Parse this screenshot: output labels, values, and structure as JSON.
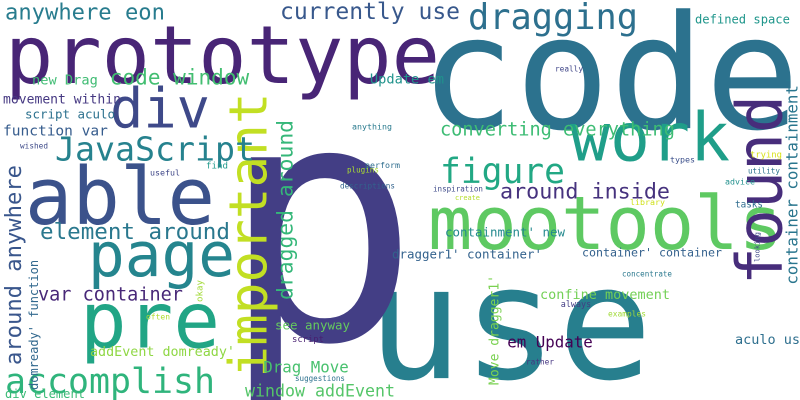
{
  "words": [
    {
      "text": "use",
      "color": "#277f8e"
    },
    {
      "text": "p",
      "color": "#433e85"
    },
    {
      "text": "code",
      "color": "#2c728e"
    },
    {
      "text": "prototype",
      "color": "#482576"
    },
    {
      "text": "mootools",
      "color": "#5ec962"
    },
    {
      "text": "pre",
      "color": "#21a585"
    },
    {
      "text": "work",
      "color": "#1f9e89"
    },
    {
      "text": "able",
      "color": "#3b528b"
    },
    {
      "text": "page",
      "color": "#25858e"
    },
    {
      "text": "div",
      "color": "#3e4989"
    },
    {
      "text": "important",
      "color": "#c2df23"
    },
    {
      "text": "figure",
      "color": "#22a884"
    },
    {
      "text": "found",
      "color": "#472d7b"
    },
    {
      "text": "accomplish",
      "color": "#2fb47c"
    },
    {
      "text": "JavaScript",
      "color": "#26828e"
    },
    {
      "text": "dragging",
      "color": "#2d708e"
    },
    {
      "text": "dragged around",
      "color": "#35b779"
    },
    {
      "text": "currently use",
      "color": "#38588c"
    },
    {
      "text": "element around",
      "color": "#2a788e"
    },
    {
      "text": "around anywhere",
      "color": "#39568c"
    },
    {
      "text": "converting everything",
      "color": "#3dbc74"
    },
    {
      "text": "around inside",
      "color": "#46327e"
    },
    {
      "text": "code window",
      "color": "#42be71"
    },
    {
      "text": "anywhere eon",
      "color": "#287c8e"
    },
    {
      "text": "window addEvent",
      "color": "#54c568"
    },
    {
      "text": "container containment'",
      "color": "#2a768e"
    },
    {
      "text": "var container",
      "color": "#482878"
    },
    {
      "text": "domready' function",
      "color": "#31688e"
    },
    {
      "text": "confine movement",
      "color": "#73d056"
    },
    {
      "text": "Move dragger1'",
      "color": "#7ad151"
    },
    {
      "text": "aculo us",
      "color": "#2e6f8e"
    },
    {
      "text": "containment' new",
      "color": "#23898e"
    },
    {
      "text": "addEvent domready'",
      "color": "#8fd744"
    },
    {
      "text": "movement within",
      "color": "#453882"
    },
    {
      "text": "function var",
      "color": "#365c8d"
    },
    {
      "text": "new Drag",
      "color": "#3fbc73"
    },
    {
      "text": "Drag Move",
      "color": "#48c16e"
    },
    {
      "text": "em Update",
      "color": "#440154"
    },
    {
      "text": "Update em",
      "color": "#20938c"
    },
    {
      "text": "script aculo",
      "color": "#2c718e"
    },
    {
      "text": "see anyway",
      "color": "#65cb5e"
    },
    {
      "text": "defined space",
      "color": "#1f968b"
    },
    {
      "text": "dragger1' container'",
      "color": "#33628d"
    },
    {
      "text": "container' container",
      "color": "#34618d"
    },
    {
      "text": "div element",
      "color": "#3aba76"
    },
    {
      "text": "script",
      "color": "#482071"
    },
    {
      "text": "trying",
      "color": "#d8e219"
    },
    {
      "text": "utility",
      "color": "#2c738e"
    },
    {
      "text": "advice",
      "color": "#21908d"
    },
    {
      "text": "tasks",
      "color": "#2f6c8e"
    },
    {
      "text": "looking",
      "color": "#3f4889"
    },
    {
      "text": "types",
      "color": "#3c508b"
    },
    {
      "text": "really",
      "color": "#404688"
    },
    {
      "text": "concentrate",
      "color": "#2a788e"
    },
    {
      "text": "examples",
      "color": "#a0da39"
    },
    {
      "text": "always",
      "color": "#433d84"
    },
    {
      "text": "suggestions",
      "color": "#2d718e"
    },
    {
      "text": "rather",
      "color": "#453581"
    },
    {
      "text": "okay",
      "color": "#a2da37"
    },
    {
      "text": "often",
      "color": "#b0dd2f"
    },
    {
      "text": "find",
      "color": "#1f998a"
    },
    {
      "text": "wished",
      "color": "#3e4a89"
    },
    {
      "text": "useful",
      "color": "#3f4788"
    },
    {
      "text": "anything",
      "color": "#297a8e"
    },
    {
      "text": "plugins",
      "color": "#aadc32"
    },
    {
      "text": "perform",
      "color": "#2e6d8e"
    },
    {
      "text": "descriptions",
      "color": "#33638d"
    },
    {
      "text": "inspiration",
      "color": "#3e4a89"
    },
    {
      "text": "create",
      "color": "#b5de2b"
    },
    {
      "text": "library",
      "color": "#d0e11c"
    }
  ]
}
